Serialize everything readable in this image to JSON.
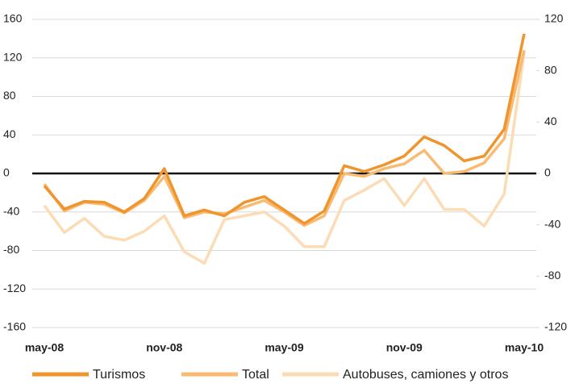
{
  "chart_data": {
    "type": "line",
    "categories": [
      "may-08",
      null,
      null,
      null,
      null,
      null,
      "nov-08",
      null,
      null,
      null,
      null,
      null,
      "may-09",
      null,
      null,
      null,
      null,
      null,
      "nov-09",
      null,
      null,
      null,
      null,
      null,
      "may-10"
    ],
    "series": [
      {
        "name": "Turismos",
        "color": "#f0952e",
        "values": [
          -13,
          -37,
          -29,
          -30,
          -40,
          -26,
          5,
          -44,
          -38,
          -44,
          -30,
          -24,
          -38,
          -52,
          -39,
          8,
          2,
          9,
          18,
          38,
          29,
          13,
          18,
          46,
          145
        ]
      },
      {
        "name": "Total",
        "color": "#f8bb72",
        "values": [
          -11,
          -39,
          -30,
          -32,
          -41,
          -28,
          -3,
          -46,
          -40,
          -42,
          -35,
          -28,
          -40,
          -54,
          -44,
          0,
          -3,
          5,
          10,
          24,
          0,
          2,
          11,
          36,
          128
        ]
      },
      {
        "name": "Autobuses, camiones y otros",
        "color": "#fbdcb5",
        "axis": "y2",
        "values": [
          -25,
          -46,
          -35,
          -49,
          -52,
          -45,
          -33,
          -61,
          -70,
          -36,
          -33,
          -30,
          -41,
          -57,
          -57,
          -21,
          -13,
          -4,
          -25,
          -4,
          -28,
          -28,
          -41,
          -16,
          94
        ]
      }
    ],
    "ylim": [
      -160,
      160
    ],
    "yticks": [
      -160,
      -120,
      -80,
      -40,
      0,
      40,
      80,
      120,
      160
    ],
    "y2lim": [
      -120,
      120
    ],
    "y2ticks": [
      -120,
      -80,
      -40,
      0,
      40,
      80,
      120
    ],
    "grid": true,
    "legend": "bottom"
  }
}
